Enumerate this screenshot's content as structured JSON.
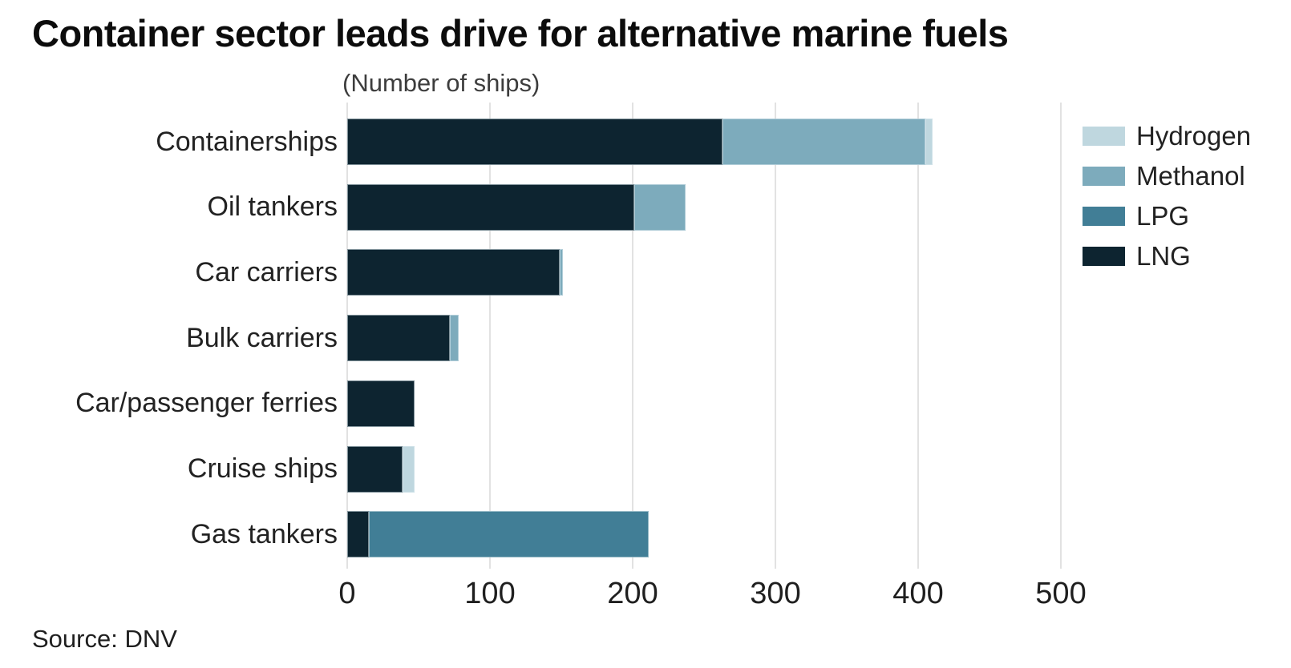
{
  "title": "Container sector leads drive for alternative marine fuels",
  "subtitle": "(Number of ships)",
  "source": "Source: DNV",
  "colors": {
    "hydrogen": "#bfd7df",
    "methanol": "#7dabbc",
    "lpg": "#417e96",
    "lng": "#0d2430",
    "gridline": "#e2e2e2",
    "title_text": "#0c0c0c",
    "body_text": "#222222"
  },
  "chart_data": {
    "type": "bar",
    "orientation": "horizontal",
    "stacked": true,
    "title": "Container sector leads drive for alternative marine fuels",
    "subtitle": "(Number of ships)",
    "xlabel": "",
    "ylabel": "",
    "grid": true,
    "legend_position": "right",
    "categories": [
      "Containerships",
      "Oil tankers",
      "Car carriers",
      "Bulk carriers",
      "Car/passenger ferries",
      "Cruise ships",
      "Gas tankers"
    ],
    "series": [
      {
        "name": "Hydrogen",
        "color": "#bfd7df",
        "values": [
          5,
          0,
          0,
          0,
          0,
          8,
          0
        ]
      },
      {
        "name": "Methanol",
        "color": "#7dabbc",
        "values": [
          142,
          36,
          2,
          6,
          0,
          0,
          0
        ]
      },
      {
        "name": "LPG",
        "color": "#417e96",
        "values": [
          0,
          0,
          0,
          0,
          0,
          0,
          196
        ]
      },
      {
        "name": "LNG",
        "color": "#0d2430",
        "values": [
          263,
          201,
          149,
          72,
          47,
          39,
          15
        ]
      }
    ],
    "totals": [
      410,
      237,
      151,
      78,
      47,
      47,
      211
    ],
    "stack_order": [
      "LNG",
      "LPG",
      "Methanol",
      "Hydrogen"
    ],
    "x_ticks": [
      0,
      100,
      200,
      300,
      400,
      500
    ],
    "xlim": [
      0,
      505
    ]
  }
}
